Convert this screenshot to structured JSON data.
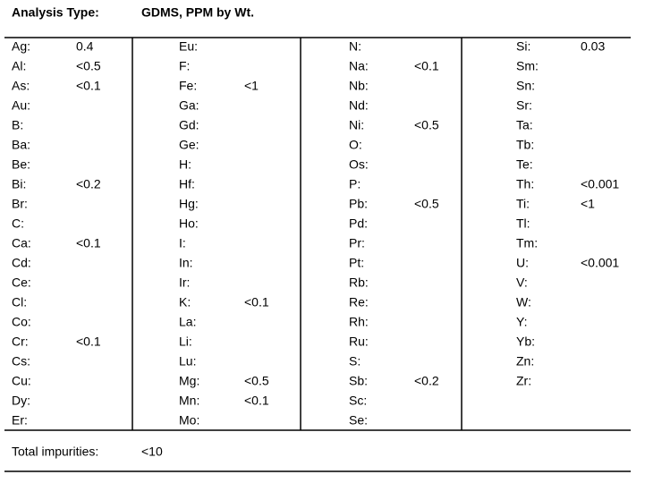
{
  "header": {
    "label": "Analysis Type:",
    "value": "GDMS, PPM by Wt."
  },
  "columns": [
    [
      {
        "element": "Ag:",
        "value": "0.4"
      },
      {
        "element": "Al:",
        "value": "<0.5"
      },
      {
        "element": "As:",
        "value": "<0.1"
      },
      {
        "element": "Au:"
      },
      {
        "element": "B:"
      },
      {
        "element": "Ba:"
      },
      {
        "element": "Be:"
      },
      {
        "element": "Bi:",
        "value": "<0.2"
      },
      {
        "element": "Br:"
      },
      {
        "element": "C:"
      },
      {
        "element": "Ca:",
        "value": "<0.1"
      },
      {
        "element": "Cd:"
      },
      {
        "element": "Ce:"
      },
      {
        "element": "Cl:"
      },
      {
        "element": "Co:"
      },
      {
        "element": "Cr:",
        "value": "<0.1"
      },
      {
        "element": "Cs:"
      },
      {
        "element": "Cu:"
      },
      {
        "element": "Dy:"
      },
      {
        "element": "Er:"
      }
    ],
    [
      {
        "element": "Eu:"
      },
      {
        "element": "F:"
      },
      {
        "element": "Fe:",
        "value": "<1"
      },
      {
        "element": "Ga:"
      },
      {
        "element": "Gd:"
      },
      {
        "element": "Ge:"
      },
      {
        "element": "H:"
      },
      {
        "element": "Hf:"
      },
      {
        "element": "Hg:"
      },
      {
        "element": "Ho:"
      },
      {
        "element": "I:"
      },
      {
        "element": "In:"
      },
      {
        "element": "Ir:"
      },
      {
        "element": "K:",
        "value": "<0.1"
      },
      {
        "element": "La:"
      },
      {
        "element": "Li:"
      },
      {
        "element": "Lu:"
      },
      {
        "element": "Mg:",
        "value": "<0.5"
      },
      {
        "element": "Mn:",
        "value": "<0.1"
      },
      {
        "element": "Mo:"
      }
    ],
    [
      {
        "element": "N:"
      },
      {
        "element": "Na:",
        "value": "<0.1"
      },
      {
        "element": "Nb:"
      },
      {
        "element": "Nd:"
      },
      {
        "element": "Ni:",
        "value": "<0.5"
      },
      {
        "element": "O:"
      },
      {
        "element": "Os:"
      },
      {
        "element": "P:"
      },
      {
        "element": "Pb:",
        "value": "<0.5"
      },
      {
        "element": "Pd:"
      },
      {
        "element": "Pr:"
      },
      {
        "element": "Pt:"
      },
      {
        "element": "Rb:"
      },
      {
        "element": "Re:"
      },
      {
        "element": "Rh:"
      },
      {
        "element": "Ru:"
      },
      {
        "element": "S:"
      },
      {
        "element": "Sb:",
        "value": "<0.2"
      },
      {
        "element": "Sc:"
      },
      {
        "element": "Se:"
      }
    ],
    [
      {
        "element": "Si:",
        "value": "0.03"
      },
      {
        "element": "Sm:"
      },
      {
        "element": "Sn:"
      },
      {
        "element": "Sr:"
      },
      {
        "element": "Ta:"
      },
      {
        "element": "Tb:"
      },
      {
        "element": "Te:"
      },
      {
        "element": "Th:",
        "value": "<0.001"
      },
      {
        "element": "Ti:",
        "value": "<1"
      },
      {
        "element": "Tl:"
      },
      {
        "element": "Tm:"
      },
      {
        "element": "U:",
        "value": "<0.001"
      },
      {
        "element": "V:"
      },
      {
        "element": "W:"
      },
      {
        "element": "Y:"
      },
      {
        "element": "Yb:"
      },
      {
        "element": "Zn:"
      },
      {
        "element": "Zr:"
      }
    ]
  ],
  "total": {
    "label": "Total impurities:",
    "value": "<10"
  }
}
